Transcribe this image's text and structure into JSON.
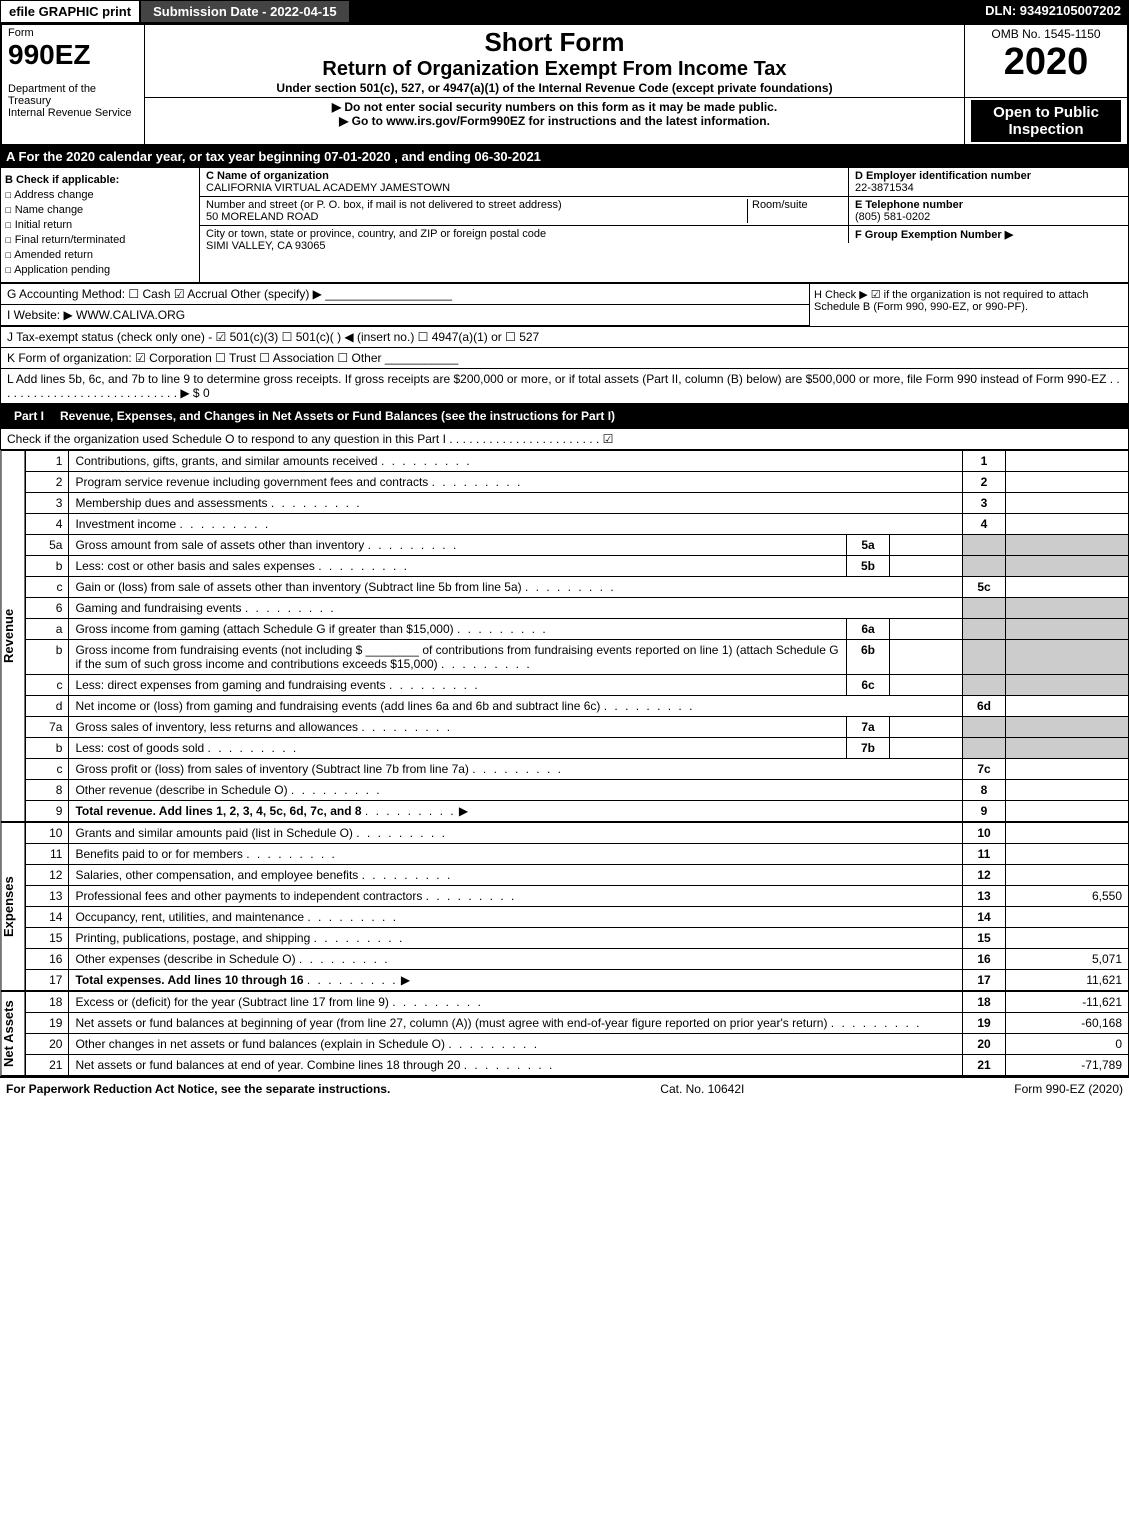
{
  "topbar": {
    "graphic_print": "efile GRAPHIC print",
    "submission_date": "Submission Date - 2022-04-15",
    "dln": "DLN: 93492105007202"
  },
  "header": {
    "form_label": "Form",
    "form_number": "990EZ",
    "dept": "Department of the Treasury",
    "irs": "Internal Revenue Service",
    "title_short": "Short Form",
    "title_main": "Return of Organization Exempt From Income Tax",
    "title_under": "Under section 501(c), 527, or 4947(a)(1) of the Internal Revenue Code (except private foundations)",
    "note1": "▶ Do not enter social security numbers on this form as it may be made public.",
    "note2": "▶ Go to www.irs.gov/Form990EZ for instructions and the latest information.",
    "omb": "OMB No. 1545-1150",
    "year": "2020",
    "open": "Open to Public Inspection"
  },
  "period": "A For the 2020 calendar year, or tax year beginning 07-01-2020 , and ending 06-30-2021",
  "checkboxes": {
    "heading": "B Check if applicable:",
    "opts": [
      "Address change",
      "Name change",
      "Initial return",
      "Final return/terminated",
      "Amended return",
      "Application pending"
    ]
  },
  "org": {
    "c_label": "C Name of organization",
    "name": "CALIFORNIA VIRTUAL ACADEMY JAMESTOWN",
    "addr_label": "Number and street (or P. O. box, if mail is not delivered to street address)",
    "room_label": "Room/suite",
    "addr": "50 MORELAND ROAD",
    "city_label": "City or town, state or province, country, and ZIP or foreign postal code",
    "city": "SIMI VALLEY, CA  93065"
  },
  "right": {
    "d_label": "D Employer identification number",
    "ein": "22-3871534",
    "e_label": "E Telephone number",
    "phone": "(805) 581-0202",
    "f_label": "F Group Exemption Number  ▶"
  },
  "lines": {
    "g": "G Accounting Method:   ☐ Cash   ☑ Accrual   Other (specify) ▶ ___________________",
    "h": "H  Check ▶ ☑ if the organization is not required to attach Schedule B (Form 990, 990-EZ, or 990-PF).",
    "i": "I Website: ▶ WWW.CALIVA.ORG",
    "j": "J Tax-exempt status (check only one) - ☑ 501(c)(3)  ☐ 501(c)(  ) ◀ (insert no.)  ☐ 4947(a)(1) or  ☐ 527",
    "k": "K Form of organization:  ☑ Corporation   ☐ Trust   ☐ Association   ☐ Other  ___________",
    "l": "L Add lines 5b, 6c, and 7b to line 9 to determine gross receipts. If gross receipts are $200,000 or more, or if total assets (Part II, column (B) below) are $500,000 or more, file Form 990 instead of Form 990-EZ . . . . . . . . . . . . . . . . . . . . . . . . . . . . ▶ $ 0"
  },
  "part1": {
    "title": "Revenue, Expenses, and Changes in Net Assets or Fund Balances (see the instructions for Part I)",
    "check": "Check if the organization used Schedule O to respond to any question in this Part I . . . . . . . . . . . . . . . . . . . . . . . ☑"
  },
  "rows": [
    {
      "n": "1",
      "d": "Contributions, gifts, grants, and similar amounts received",
      "r": "1",
      "v": ""
    },
    {
      "n": "2",
      "d": "Program service revenue including government fees and contracts",
      "r": "2",
      "v": ""
    },
    {
      "n": "3",
      "d": "Membership dues and assessments",
      "r": "3",
      "v": ""
    },
    {
      "n": "4",
      "d": "Investment income",
      "r": "4",
      "v": ""
    },
    {
      "n": "5a",
      "d": "Gross amount from sale of assets other than inventory",
      "sub": "5a",
      "shaded": true
    },
    {
      "n": "b",
      "d": "Less: cost or other basis and sales expenses",
      "sub": "5b",
      "shaded": true
    },
    {
      "n": "c",
      "d": "Gain or (loss) from sale of assets other than inventory (Subtract line 5b from line 5a)",
      "r": "5c",
      "v": ""
    },
    {
      "n": "6",
      "d": "Gaming and fundraising events",
      "shaded": true
    },
    {
      "n": "a",
      "d": "Gross income from gaming (attach Schedule G if greater than $15,000)",
      "sub": "6a",
      "shaded": true
    },
    {
      "n": "b",
      "d": "Gross income from fundraising events (not including $ ________ of contributions from fundraising events reported on line 1) (attach Schedule G if the sum of such gross income and contributions exceeds $15,000)",
      "sub": "6b",
      "shaded": true
    },
    {
      "n": "c",
      "d": "Less: direct expenses from gaming and fundraising events",
      "sub": "6c",
      "shaded": true
    },
    {
      "n": "d",
      "d": "Net income or (loss) from gaming and fundraising events (add lines 6a and 6b and subtract line 6c)",
      "r": "6d",
      "v": ""
    },
    {
      "n": "7a",
      "d": "Gross sales of inventory, less returns and allowances",
      "sub": "7a",
      "shaded": true
    },
    {
      "n": "b",
      "d": "Less: cost of goods sold",
      "sub": "7b",
      "shaded": true
    },
    {
      "n": "c",
      "d": "Gross profit or (loss) from sales of inventory (Subtract line 7b from line 7a)",
      "r": "7c",
      "v": ""
    },
    {
      "n": "8",
      "d": "Other revenue (describe in Schedule O)",
      "r": "8",
      "v": ""
    },
    {
      "n": "9",
      "d": "Total revenue. Add lines 1, 2, 3, 4, 5c, 6d, 7c, and 8",
      "r": "9",
      "v": "",
      "arrow": true,
      "bold": true
    }
  ],
  "exp_rows": [
    {
      "n": "10",
      "d": "Grants and similar amounts paid (list in Schedule O)",
      "r": "10",
      "v": ""
    },
    {
      "n": "11",
      "d": "Benefits paid to or for members",
      "r": "11",
      "v": ""
    },
    {
      "n": "12",
      "d": "Salaries, other compensation, and employee benefits",
      "r": "12",
      "v": ""
    },
    {
      "n": "13",
      "d": "Professional fees and other payments to independent contractors",
      "r": "13",
      "v": "6,550"
    },
    {
      "n": "14",
      "d": "Occupancy, rent, utilities, and maintenance",
      "r": "14",
      "v": ""
    },
    {
      "n": "15",
      "d": "Printing, publications, postage, and shipping",
      "r": "15",
      "v": ""
    },
    {
      "n": "16",
      "d": "Other expenses (describe in Schedule O)",
      "r": "16",
      "v": "5,071"
    },
    {
      "n": "17",
      "d": "Total expenses. Add lines 10 through 16",
      "r": "17",
      "v": "11,621",
      "arrow": true,
      "bold": true
    }
  ],
  "net_rows": [
    {
      "n": "18",
      "d": "Excess or (deficit) for the year (Subtract line 17 from line 9)",
      "r": "18",
      "v": "-11,621"
    },
    {
      "n": "19",
      "d": "Net assets or fund balances at beginning of year (from line 27, column (A)) (must agree with end-of-year figure reported on prior year's return)",
      "r": "19",
      "v": "-60,168"
    },
    {
      "n": "20",
      "d": "Other changes in net assets or fund balances (explain in Schedule O)",
      "r": "20",
      "v": "0"
    },
    {
      "n": "21",
      "d": "Net assets or fund balances at end of year. Combine lines 18 through 20",
      "r": "21",
      "v": "-71,789"
    }
  ],
  "side_labels": {
    "revenue": "Revenue",
    "expenses": "Expenses",
    "net_assets": "Net Assets"
  },
  "footer": {
    "left": "For Paperwork Reduction Act Notice, see the separate instructions.",
    "mid": "Cat. No. 10642I",
    "right": "Form 990-EZ (2020)"
  },
  "part_label": "Part I"
}
